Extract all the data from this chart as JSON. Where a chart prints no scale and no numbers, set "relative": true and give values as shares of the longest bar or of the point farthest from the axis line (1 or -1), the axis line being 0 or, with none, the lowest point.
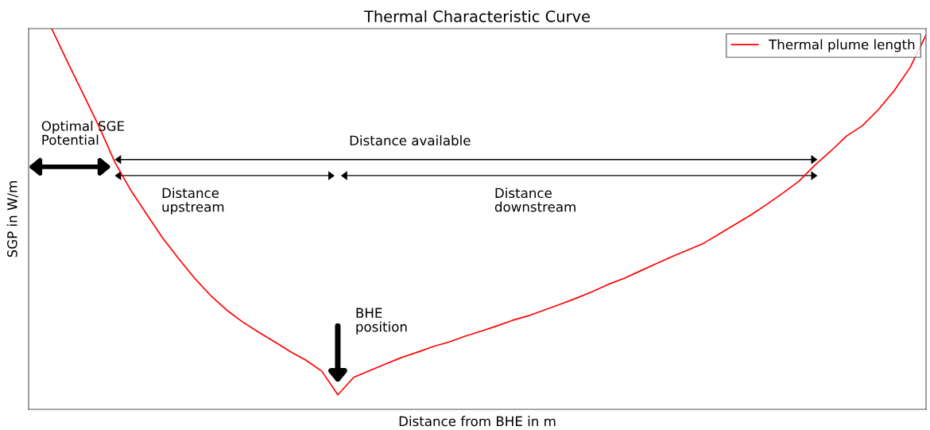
{
  "chart_data": {
    "type": "line",
    "title": "Thermal Characteristic Curve",
    "xlabel": "Distance from BHE in m",
    "ylabel": "SGP in W/m",
    "relative": true,
    "legend": "top right",
    "categories": [
      null,
      null,
      null,
      null,
      null,
      null,
      null,
      null,
      null,
      null,
      null,
      null,
      null,
      null,
      null,
      null,
      null,
      null,
      null,
      null,
      null,
      null,
      null,
      null,
      null,
      null,
      null,
      null,
      null,
      null,
      null,
      null,
      null,
      null,
      null,
      null,
      null,
      null,
      null,
      null,
      null,
      null,
      null,
      null,
      null,
      null,
      null,
      null,
      null,
      null,
      null,
      null,
      null,
      null,
      null,
      null
    ],
    "series": [
      {
        "name": "Thermal plume length",
        "color": "#ff0000",
        "values": [
          1.0,
          0.912,
          0.827,
          0.741,
          0.647,
          0.574,
          0.511,
          0.449,
          0.395,
          0.344,
          0.299,
          0.261,
          0.23,
          0.203,
          0.178,
          0.152,
          0.129,
          0.1,
          0.038,
          0.084,
          0.102,
          0.119,
          0.136,
          0.15,
          0.165,
          0.177,
          0.192,
          0.205,
          0.219,
          0.234,
          0.246,
          0.261,
          0.276,
          0.292,
          0.309,
          0.328,
          0.344,
          0.363,
          0.382,
          0.401,
          0.418,
          0.436,
          0.461,
          0.486,
          0.511,
          0.539,
          0.568,
          0.599,
          0.641,
          0.678,
          0.718,
          0.745,
          0.787,
          0.837,
          0.898,
          0.983
        ]
      }
    ],
    "annotations": [
      "Optimal SGE\nPotential",
      "Distance available",
      "Distance\nupstream",
      "Distance\ndownstream",
      "BHE\nposition"
    ]
  }
}
